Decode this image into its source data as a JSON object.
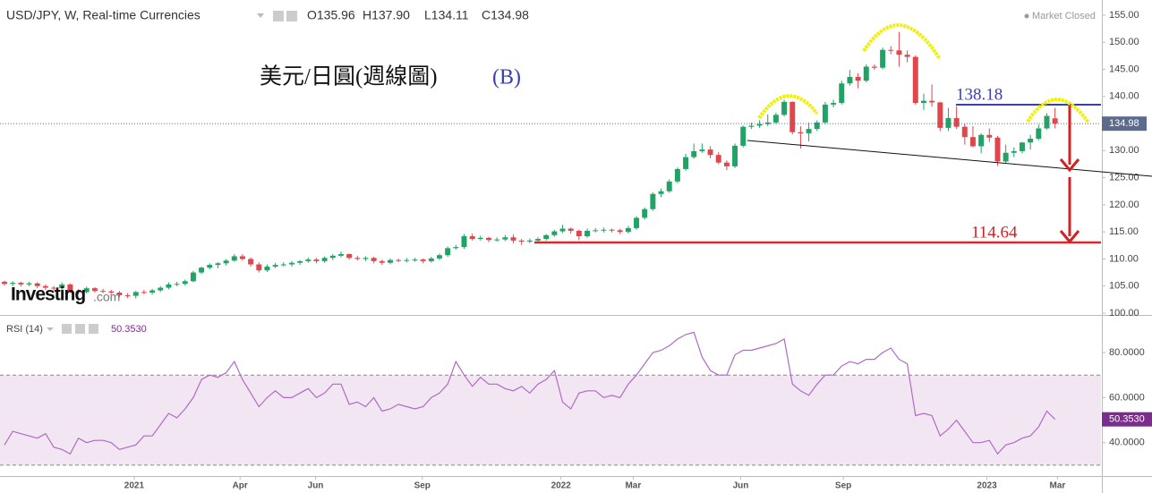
{
  "chart_data": [
    {
      "type": "candlestick",
      "title": "USD/JPY, W, Real-time Currencies",
      "legend_values": [
        "O135.96",
        "H137.90",
        "L134.11",
        "C134.98"
      ],
      "status": "Market Closed",
      "brand": [
        "Investing",
        ".com"
      ],
      "annotations": [
        "美元/日圓(週線圖)",
        "(B)",
        "138.18",
        "114.64"
      ],
      "up_color": "#21a366",
      "down_color": "#e0474c",
      "last_label": "134.98",
      "xlim": [
        -0.55,
        133.6
      ],
      "ylim": [
        99.67,
        157.8
      ],
      "yticks": [
        {
          "value": 100,
          "label": "100.00"
        },
        {
          "value": 105,
          "label": "105.00"
        },
        {
          "value": 110,
          "label": "110.00"
        },
        {
          "value": 115,
          "label": "115.00"
        },
        {
          "value": 120,
          "label": "120.00"
        },
        {
          "value": 125,
          "label": "125.00"
        },
        {
          "value": 130,
          "label": "130.00"
        },
        {
          "value": 135,
          "label": "135.00"
        },
        {
          "value": 140,
          "label": "140.00"
        },
        {
          "value": 145,
          "label": "145.00"
        },
        {
          "value": 150,
          "label": "150.00"
        },
        {
          "value": 155,
          "label": "155.00"
        }
      ],
      "ohlc": [
        [
          105.8,
          106.0,
          105.1,
          105.4
        ],
        [
          105.4,
          105.9,
          105.0,
          105.6
        ],
        [
          105.6,
          105.8,
          104.9,
          105.3
        ],
        [
          105.3,
          105.8,
          105.0,
          105.5
        ],
        [
          105.5,
          105.7,
          104.6,
          105.0
        ],
        [
          105.0,
          105.3,
          104.3,
          104.7
        ],
        [
          104.7,
          105.0,
          104.2,
          104.6
        ],
        [
          104.6,
          105.7,
          104.3,
          105.3
        ],
        [
          105.3,
          105.5,
          103.7,
          104.0
        ],
        [
          104.0,
          104.4,
          103.5,
          103.9
        ],
        [
          103.9,
          104.9,
          103.6,
          104.6
        ],
        [
          104.6,
          104.8,
          103.8,
          104.1
        ],
        [
          104.1,
          104.5,
          103.7,
          104.0
        ],
        [
          104.0,
          104.3,
          103.5,
          103.8
        ],
        [
          103.8,
          104.1,
          102.9,
          103.3
        ],
        [
          103.3,
          103.7,
          102.8,
          103.2
        ],
        [
          103.2,
          104.1,
          102.7,
          103.9
        ],
        [
          103.9,
          104.3,
          103.5,
          103.8
        ],
        [
          103.8,
          104.5,
          103.4,
          104.2
        ],
        [
          104.2,
          105.0,
          103.9,
          104.7
        ],
        [
          104.7,
          105.7,
          104.4,
          105.3
        ],
        [
          105.3,
          105.8,
          105.0,
          105.4
        ],
        [
          105.4,
          106.2,
          105.1,
          105.9
        ],
        [
          105.9,
          107.8,
          105.7,
          107.5
        ],
        [
          107.5,
          108.6,
          107.2,
          108.4
        ],
        [
          108.4,
          109.2,
          108.1,
          108.9
        ],
        [
          108.9,
          109.4,
          108.3,
          109.2
        ],
        [
          109.2,
          110.0,
          108.8,
          109.7
        ],
        [
          109.7,
          110.9,
          109.5,
          110.5
        ],
        [
          110.5,
          110.9,
          109.7,
          110.0
        ],
        [
          110.0,
          110.3,
          108.6,
          109.0
        ],
        [
          109.0,
          109.4,
          107.5,
          107.9
        ],
        [
          107.9,
          109.0,
          107.6,
          108.6
        ],
        [
          108.6,
          109.3,
          108.3,
          108.9
        ],
        [
          108.9,
          109.4,
          108.6,
          109.0
        ],
        [
          109.0,
          109.6,
          108.6,
          109.3
        ],
        [
          109.3,
          109.8,
          108.9,
          109.6
        ],
        [
          109.6,
          110.3,
          109.3,
          109.9
        ],
        [
          109.9,
          110.2,
          109.2,
          109.6
        ],
        [
          109.6,
          110.5,
          109.3,
          110.2
        ],
        [
          110.2,
          110.9,
          109.8,
          110.6
        ],
        [
          110.6,
          111.4,
          110.3,
          110.9
        ],
        [
          110.9,
          111.0,
          109.9,
          110.2
        ],
        [
          110.2,
          110.6,
          109.7,
          110.0
        ],
        [
          110.0,
          110.5,
          109.6,
          110.2
        ],
        [
          110.2,
          110.4,
          109.2,
          109.6
        ],
        [
          109.6,
          109.9,
          108.9,
          109.3
        ],
        [
          109.3,
          110.1,
          109.0,
          109.8
        ],
        [
          109.8,
          110.1,
          109.4,
          109.7
        ],
        [
          109.7,
          110.2,
          109.4,
          109.8
        ],
        [
          109.8,
          110.2,
          109.5,
          109.9
        ],
        [
          109.9,
          110.1,
          109.2,
          109.6
        ],
        [
          109.6,
          110.4,
          109.3,
          110.1
        ],
        [
          110.1,
          111.0,
          109.8,
          110.7
        ],
        [
          110.7,
          112.3,
          110.4,
          112.0
        ],
        [
          112.0,
          112.6,
          111.7,
          112.2
        ],
        [
          112.2,
          114.6,
          111.9,
          114.2
        ],
        [
          114.2,
          114.7,
          113.4,
          113.7
        ],
        [
          113.7,
          114.3,
          113.4,
          113.9
        ],
        [
          113.9,
          114.1,
          113.1,
          113.5
        ],
        [
          113.5,
          114.0,
          113.2,
          113.6
        ],
        [
          113.6,
          114.4,
          113.3,
          114.0
        ],
        [
          114.0,
          114.5,
          112.9,
          113.4
        ],
        [
          113.4,
          113.7,
          112.6,
          113.2
        ],
        [
          113.2,
          113.8,
          112.9,
          113.4
        ],
        [
          113.4,
          114.0,
          113.1,
          113.7
        ],
        [
          113.7,
          114.6,
          113.4,
          114.4
        ],
        [
          114.4,
          115.4,
          114.1,
          115.1
        ],
        [
          115.1,
          116.3,
          114.8,
          115.6
        ],
        [
          115.6,
          115.8,
          114.7,
          115.2
        ],
        [
          115.2,
          115.4,
          113.5,
          114.2
        ],
        [
          114.2,
          115.6,
          113.9,
          115.2
        ],
        [
          115.2,
          115.7,
          114.9,
          115.3
        ],
        [
          115.3,
          115.8,
          114.9,
          115.4
        ],
        [
          115.4,
          115.6,
          114.9,
          115.3
        ],
        [
          115.3,
          115.6,
          114.6,
          115.0
        ],
        [
          115.0,
          116.1,
          114.7,
          115.7
        ],
        [
          115.7,
          117.9,
          115.4,
          117.6
        ],
        [
          117.6,
          119.5,
          117.3,
          119.2
        ],
        [
          119.2,
          122.3,
          118.9,
          122.0
        ],
        [
          122.0,
          123.0,
          121.4,
          122.5
        ],
        [
          122.5,
          124.7,
          122.2,
          124.3
        ],
        [
          124.3,
          126.9,
          124.0,
          126.6
        ],
        [
          126.6,
          129.4,
          126.3,
          128.8
        ],
        [
          128.8,
          131.3,
          128.5,
          129.9
        ],
        [
          129.9,
          131.3,
          129.6,
          130.2
        ],
        [
          130.2,
          130.8,
          128.6,
          129.2
        ],
        [
          129.2,
          129.7,
          127.5,
          127.8
        ],
        [
          127.8,
          128.2,
          126.4,
          127.1
        ],
        [
          127.1,
          131.3,
          126.8,
          130.9
        ],
        [
          130.9,
          134.6,
          130.6,
          134.4
        ],
        [
          134.4,
          135.2,
          134.0,
          134.6
        ],
        [
          134.6,
          135.6,
          134.2,
          134.9
        ],
        [
          134.9,
          136.7,
          134.5,
          135.2
        ],
        [
          135.2,
          137.0,
          134.9,
          136.6
        ],
        [
          136.6,
          139.4,
          136.3,
          139.0
        ],
        [
          139.0,
          139.1,
          133.0,
          133.4
        ],
        [
          133.4,
          134.5,
          130.4,
          133.2
        ],
        [
          133.2,
          135.2,
          131.7,
          134.0
        ],
        [
          134.0,
          135.6,
          133.6,
          135.2
        ],
        [
          135.2,
          139.0,
          134.9,
          138.5
        ],
        [
          138.5,
          139.4,
          138.0,
          138.8
        ],
        [
          138.8,
          142.9,
          138.5,
          142.4
        ],
        [
          142.4,
          144.9,
          142.0,
          143.6
        ],
        [
          143.6,
          144.3,
          141.5,
          142.9
        ],
        [
          142.9,
          145.9,
          142.6,
          145.5
        ],
        [
          145.5,
          145.9,
          144.9,
          145.3
        ],
        [
          145.3,
          149.0,
          145.0,
          148.6
        ],
        [
          148.6,
          149.3,
          147.8,
          148.5
        ],
        [
          148.5,
          151.9,
          145.5,
          147.7
        ],
        [
          147.7,
          148.5,
          146.3,
          147.3
        ],
        [
          147.3,
          147.6,
          138.5,
          138.8
        ],
        [
          138.8,
          140.5,
          137.5,
          139.2
        ],
        [
          139.2,
          142.2,
          138.1,
          138.9
        ],
        [
          138.9,
          139.0,
          133.6,
          134.2
        ],
        [
          134.2,
          137.9,
          133.6,
          136.0
        ],
        [
          136.0,
          138.2,
          134.0,
          134.4
        ],
        [
          134.4,
          135.0,
          131.1,
          132.5
        ],
        [
          132.5,
          134.5,
          130.6,
          130.8
        ],
        [
          130.8,
          133.2,
          129.5,
          132.9
        ],
        [
          132.9,
          134.1,
          131.6,
          132.4
        ],
        [
          132.4,
          132.7,
          127.2,
          128.0
        ],
        [
          128.0,
          131.1,
          127.6,
          129.6
        ],
        [
          129.6,
          130.6,
          128.8,
          129.9
        ],
        [
          129.9,
          131.6,
          129.5,
          131.5
        ],
        [
          131.5,
          132.9,
          130.2,
          132.2
        ],
        [
          132.2,
          134.8,
          131.9,
          134.1
        ],
        [
          134.1,
          136.9,
          133.9,
          136.4
        ],
        [
          135.96,
          137.9,
          134.11,
          134.98
        ]
      ]
    },
    {
      "type": "line",
      "name": "RSI (14)",
      "color": "#b06ac6",
      "band": [
        30,
        70
      ],
      "last": {
        "value": 50.353,
        "label": "50.3530"
      },
      "xlim": [
        -0.55,
        133.6
      ],
      "ylim": [
        25.2,
        95.5
      ],
      "yticks": [
        {
          "value": 40,
          "label": "40.0000"
        },
        {
          "value": 60,
          "label": "60.0000"
        },
        {
          "value": 80,
          "label": "80.0000"
        }
      ],
      "xticks": [
        {
          "value": 15.8,
          "label": "2021"
        },
        {
          "value": 28.7,
          "label": "Apr"
        },
        {
          "value": 37.9,
          "label": "Jun"
        },
        {
          "value": 50.9,
          "label": "Sep"
        },
        {
          "value": 67.8,
          "label": "2022"
        },
        {
          "value": 76.6,
          "label": "Mar"
        },
        {
          "value": 89.7,
          "label": "Jun"
        },
        {
          "value": 102.2,
          "label": "Sep"
        },
        {
          "value": 119.7,
          "label": "2023"
        },
        {
          "value": 128.3,
          "label": "Mar"
        }
      ],
      "values": [
        39,
        45,
        44,
        43,
        42,
        44,
        38,
        37,
        35,
        42,
        40,
        41,
        41,
        40,
        37,
        38,
        39,
        43,
        43,
        48,
        53,
        51,
        55,
        60,
        68,
        70,
        69,
        71,
        76,
        68,
        62,
        56,
        60,
        63,
        60,
        60,
        62,
        64,
        60,
        62,
        66,
        66,
        57,
        58,
        56,
        60,
        54,
        55,
        57,
        56,
        55,
        56,
        60,
        62,
        66,
        76,
        70,
        65,
        69,
        66,
        66,
        64,
        63,
        65,
        62,
        66,
        68,
        72,
        58,
        55,
        62,
        63,
        63,
        60,
        61,
        60,
        66,
        70,
        75,
        80,
        81,
        83,
        86,
        88,
        89,
        78,
        72,
        70,
        70,
        79,
        81,
        81,
        82,
        83,
        84,
        86,
        66,
        63,
        61,
        66,
        70,
        70,
        74,
        76,
        75,
        77,
        77,
        80,
        82,
        77,
        75,
        52,
        53,
        52,
        43,
        46,
        50,
        45,
        40,
        40,
        41,
        35,
        39,
        40,
        42,
        43,
        47,
        54,
        50.353
      ]
    }
  ]
}
